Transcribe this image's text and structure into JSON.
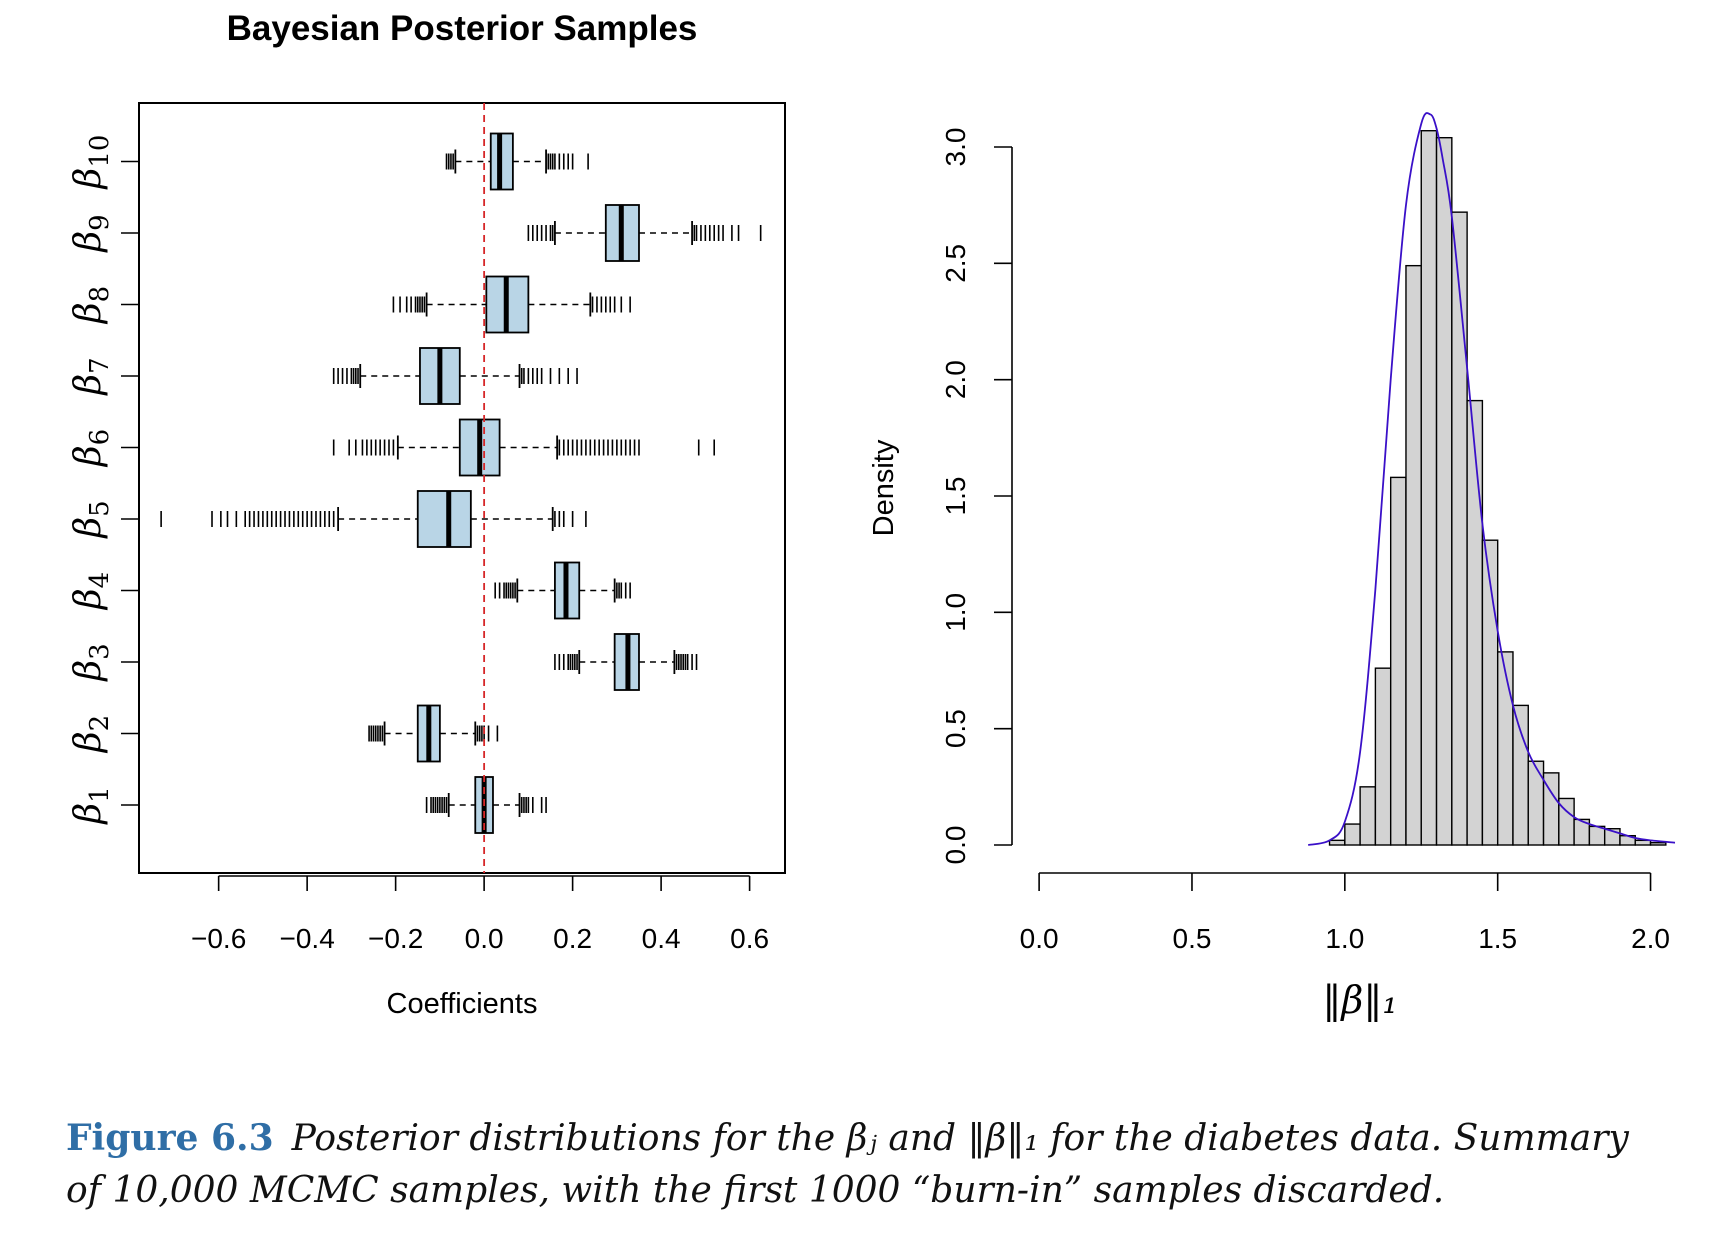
{
  "chart_data": [
    {
      "type": "boxplot",
      "title": "Bayesian Posterior Samples",
      "xlabel": "Coefficients",
      "ylabel": "",
      "xlim": [
        -0.78,
        0.68
      ],
      "x_ticks": [
        "−0.6",
        "−0.4",
        "−0.2",
        "0.0",
        "0.2",
        "0.4",
        "0.6"
      ],
      "x_tick_values": [
        -0.6,
        -0.4,
        -0.2,
        0.0,
        0.2,
        0.4,
        0.6
      ],
      "reference_line": {
        "x": 0.0,
        "style": "dashed",
        "color": "#d62728"
      },
      "box_color": "#b9d5e6",
      "orientation": "horizontal",
      "series": [
        {
          "name": "β1",
          "sub": "1",
          "q1": -0.02,
          "median": 0.0,
          "q3": 0.02,
          "whisker_lo": -0.08,
          "whisker_hi": 0.08,
          "outliers": [
            -0.13,
            -0.12,
            -0.115,
            -0.11,
            -0.105,
            -0.1,
            -0.095,
            -0.09,
            -0.085,
            0.085,
            0.09,
            0.095,
            0.1,
            0.11,
            0.13,
            0.14
          ]
        },
        {
          "name": "β2",
          "sub": "2",
          "q1": -0.15,
          "median": -0.125,
          "q3": -0.1,
          "whisker_lo": -0.225,
          "whisker_hi": -0.02,
          "outliers": [
            -0.26,
            -0.255,
            -0.25,
            -0.245,
            -0.24,
            -0.235,
            -0.23,
            -0.015,
            -0.01,
            -0.005,
            0.0,
            0.01,
            0.03
          ]
        },
        {
          "name": "β3",
          "sub": "3",
          "q1": 0.295,
          "median": 0.325,
          "q3": 0.35,
          "whisker_lo": 0.215,
          "whisker_hi": 0.43,
          "outliers": [
            0.16,
            0.17,
            0.18,
            0.19,
            0.195,
            0.2,
            0.205,
            0.21,
            0.435,
            0.44,
            0.445,
            0.45,
            0.455,
            0.46,
            0.47,
            0.48
          ]
        },
        {
          "name": "β4",
          "sub": "4",
          "q1": 0.16,
          "median": 0.185,
          "q3": 0.215,
          "whisker_lo": 0.075,
          "whisker_hi": 0.295,
          "outliers": [
            0.025,
            0.035,
            0.045,
            0.05,
            0.055,
            0.06,
            0.065,
            0.07,
            0.3,
            0.305,
            0.31,
            0.32,
            0.33
          ]
        },
        {
          "name": "β5",
          "sub": "5",
          "q1": -0.15,
          "median": -0.08,
          "q3": -0.03,
          "whisker_lo": -0.33,
          "whisker_hi": 0.155,
          "outliers": [
            -0.73,
            -0.615,
            -0.595,
            -0.58,
            -0.56,
            -0.54,
            -0.53,
            -0.52,
            -0.51,
            -0.5,
            -0.49,
            -0.48,
            -0.47,
            -0.46,
            -0.45,
            -0.44,
            -0.43,
            -0.42,
            -0.41,
            -0.4,
            -0.39,
            -0.38,
            -0.37,
            -0.36,
            -0.35,
            -0.34,
            0.16,
            0.17,
            0.18,
            0.2,
            0.23
          ]
        },
        {
          "name": "β6",
          "sub": "6",
          "q1": -0.055,
          "median": -0.01,
          "q3": 0.035,
          "whisker_lo": -0.195,
          "whisker_hi": 0.165,
          "outliers": [
            -0.34,
            -0.305,
            -0.29,
            -0.275,
            -0.265,
            -0.255,
            -0.245,
            -0.235,
            -0.225,
            -0.215,
            -0.205,
            0.17,
            0.18,
            0.19,
            0.2,
            0.21,
            0.22,
            0.23,
            0.24,
            0.25,
            0.26,
            0.27,
            0.28,
            0.29,
            0.3,
            0.31,
            0.32,
            0.33,
            0.34,
            0.35,
            0.485,
            0.52
          ]
        },
        {
          "name": "β7",
          "sub": "7",
          "q1": -0.145,
          "median": -0.1,
          "q3": -0.055,
          "whisker_lo": -0.28,
          "whisker_hi": 0.08,
          "outliers": [
            -0.34,
            -0.33,
            -0.32,
            -0.31,
            -0.3,
            -0.295,
            -0.29,
            -0.285,
            0.085,
            0.09,
            0.1,
            0.11,
            0.12,
            0.13,
            0.15,
            0.17,
            0.19,
            0.21
          ]
        },
        {
          "name": "β8",
          "sub": "8",
          "q1": 0.005,
          "median": 0.05,
          "q3": 0.1,
          "whisker_lo": -0.13,
          "whisker_hi": 0.24,
          "outliers": [
            -0.205,
            -0.19,
            -0.175,
            -0.165,
            -0.155,
            -0.15,
            -0.145,
            -0.14,
            -0.135,
            0.245,
            0.255,
            0.265,
            0.275,
            0.285,
            0.295,
            0.31,
            0.33
          ]
        },
        {
          "name": "β9",
          "sub": "9",
          "q1": 0.275,
          "median": 0.31,
          "q3": 0.35,
          "whisker_lo": 0.16,
          "whisker_hi": 0.47,
          "outliers": [
            0.1,
            0.11,
            0.12,
            0.13,
            0.14,
            0.15,
            0.155,
            0.475,
            0.48,
            0.49,
            0.5,
            0.51,
            0.52,
            0.53,
            0.54,
            0.56,
            0.575,
            0.625
          ]
        },
        {
          "name": "β10",
          "sub": "10",
          "q1": 0.015,
          "median": 0.035,
          "q3": 0.065,
          "whisker_lo": -0.065,
          "whisker_hi": 0.14,
          "outliers": [
            -0.085,
            -0.08,
            -0.075,
            -0.07,
            0.145,
            0.15,
            0.155,
            0.16,
            0.17,
            0.18,
            0.19,
            0.2,
            0.235
          ]
        }
      ]
    },
    {
      "type": "histogram",
      "title": "",
      "xlabel": "‖β‖₁",
      "ylabel": "Density",
      "xlim": [
        -0.02,
        2.08
      ],
      "ylim": [
        0.0,
        3.15
      ],
      "x_ticks": [
        "0.0",
        "0.5",
        "1.0",
        "1.5",
        "2.0"
      ],
      "x_tick_values": [
        0.0,
        0.5,
        1.0,
        1.5,
        2.0
      ],
      "y_ticks": [
        "0.0",
        "0.5",
        "1.0",
        "1.5",
        "2.0",
        "2.5",
        "3.0"
      ],
      "y_tick_values": [
        0.0,
        0.5,
        1.0,
        1.5,
        2.0,
        2.5,
        3.0
      ],
      "bar_color": "#d3d3d3",
      "curve_color": "#3a10c8",
      "bin_width": 0.05,
      "bins_start": 0.9,
      "density": [
        0.0,
        0.02,
        0.09,
        0.25,
        0.76,
        1.58,
        2.49,
        3.07,
        3.04,
        2.72,
        1.91,
        1.31,
        0.83,
        0.6,
        0.36,
        0.31,
        0.2,
        0.11,
        0.08,
        0.07,
        0.04,
        0.02,
        0.01
      ],
      "density_curve": {
        "x": [
          0.88,
          0.95,
          1.0,
          1.05,
          1.1,
          1.15,
          1.2,
          1.25,
          1.28,
          1.3,
          1.32,
          1.35,
          1.4,
          1.45,
          1.5,
          1.55,
          1.6,
          1.65,
          1.7,
          1.75,
          1.8,
          1.85,
          1.9,
          1.95,
          2.0,
          2.08
        ],
        "y": [
          0.0,
          0.02,
          0.1,
          0.4,
          1.1,
          2.0,
          2.75,
          3.1,
          3.14,
          3.08,
          2.95,
          2.7,
          2.05,
          1.38,
          0.92,
          0.6,
          0.4,
          0.28,
          0.18,
          0.12,
          0.09,
          0.07,
          0.05,
          0.03,
          0.02,
          0.01
        ]
      }
    }
  ],
  "caption": {
    "label": "Figure 6.3",
    "text": "Posterior distributions for the βⱼ and ‖β‖₁ for the diabetes data. Summary of 10,000 MCMC samples, with the first 1000 “burn-in” samples discarded."
  }
}
